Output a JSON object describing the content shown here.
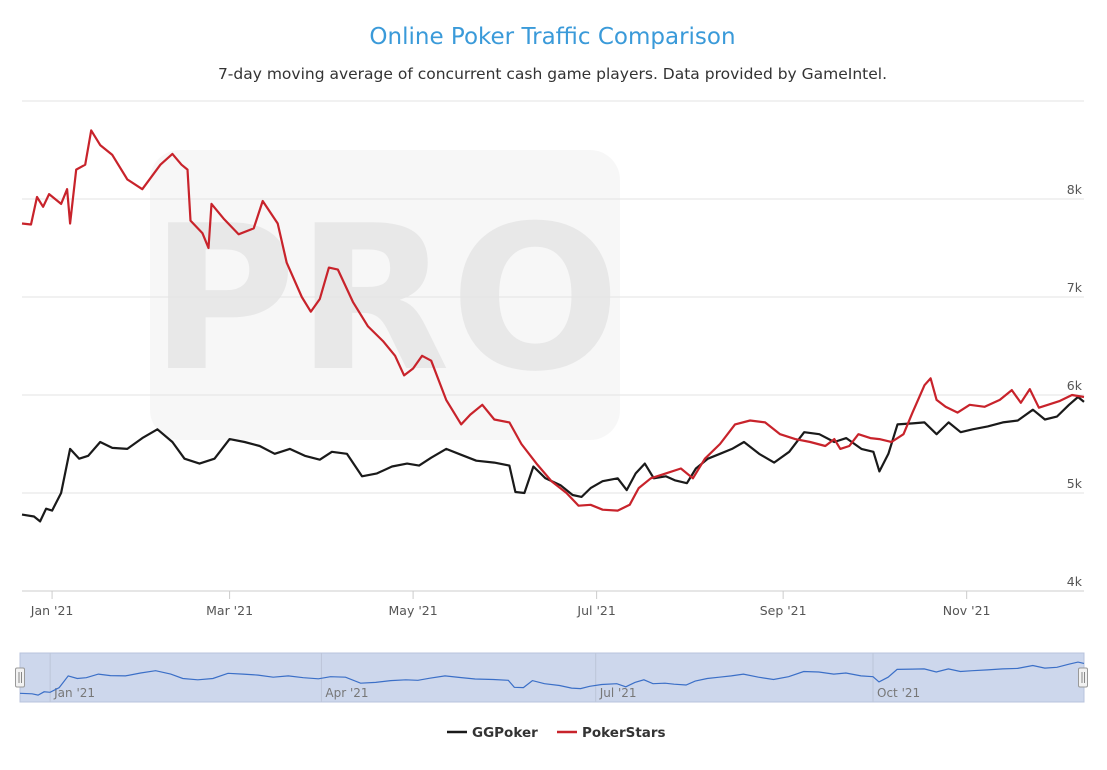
{
  "chart_data": {
    "type": "line",
    "title": "Online Poker Traffic Comparison",
    "subtitle": "7-day moving average of concurrent cash game players. Data provided by GameIntel.",
    "watermark": "PRO",
    "xlim": [
      "2020-12-22",
      "2021-12-10"
    ],
    "ylim": [
      4000,
      9000
    ],
    "y_ticks": [
      {
        "value": 4000,
        "label": "4k"
      },
      {
        "value": 5000,
        "label": "5k"
      },
      {
        "value": 6000,
        "label": "6k"
      },
      {
        "value": 7000,
        "label": "7k"
      },
      {
        "value": 8000,
        "label": "8k"
      }
    ],
    "x_ticks": [
      {
        "date": "2021-01-01",
        "label": "Jan '21"
      },
      {
        "date": "2021-03-01",
        "label": "Mar '21"
      },
      {
        "date": "2021-05-01",
        "label": "May '21"
      },
      {
        "date": "2021-07-01",
        "label": "Jul '21"
      },
      {
        "date": "2021-09-01",
        "label": "Sep '21"
      },
      {
        "date": "2021-11-01",
        "label": "Nov '21"
      }
    ],
    "grid": true,
    "legend_position": "bottom-center",
    "navigator": {
      "series": "GGPoker",
      "ticks": [
        {
          "date": "2021-01-01",
          "label": "Jan '21"
        },
        {
          "date": "2021-04-01",
          "label": "Apr '21"
        },
        {
          "date": "2021-07-01",
          "label": "Jul '21"
        },
        {
          "date": "2021-10-01",
          "label": "Oct '21"
        }
      ]
    },
    "series": [
      {
        "name": "GGPoker",
        "color": "#1a1a1a",
        "points": [
          [
            "2020-12-22",
            4780
          ],
          [
            "2020-12-26",
            4760
          ],
          [
            "2020-12-28",
            4710
          ],
          [
            "2020-12-30",
            4840
          ],
          [
            "2021-01-01",
            4820
          ],
          [
            "2021-01-04",
            5000
          ],
          [
            "2021-01-07",
            5450
          ],
          [
            "2021-01-10",
            5350
          ],
          [
            "2021-01-13",
            5380
          ],
          [
            "2021-01-17",
            5520
          ],
          [
            "2021-01-21",
            5460
          ],
          [
            "2021-01-26",
            5450
          ],
          [
            "2021-01-31",
            5560
          ],
          [
            "2021-02-05",
            5650
          ],
          [
            "2021-02-10",
            5520
          ],
          [
            "2021-02-14",
            5350
          ],
          [
            "2021-02-19",
            5300
          ],
          [
            "2021-02-24",
            5350
          ],
          [
            "2021-03-01",
            5550
          ],
          [
            "2021-03-06",
            5520
          ],
          [
            "2021-03-11",
            5480
          ],
          [
            "2021-03-16",
            5400
          ],
          [
            "2021-03-21",
            5450
          ],
          [
            "2021-03-26",
            5380
          ],
          [
            "2021-03-31",
            5340
          ],
          [
            "2021-04-04",
            5420
          ],
          [
            "2021-04-09",
            5400
          ],
          [
            "2021-04-14",
            5170
          ],
          [
            "2021-04-19",
            5200
          ],
          [
            "2021-04-24",
            5270
          ],
          [
            "2021-04-29",
            5300
          ],
          [
            "2021-05-03",
            5280
          ],
          [
            "2021-05-07",
            5360
          ],
          [
            "2021-05-12",
            5450
          ],
          [
            "2021-05-17",
            5390
          ],
          [
            "2021-05-22",
            5330
          ],
          [
            "2021-05-28",
            5310
          ],
          [
            "2021-06-02",
            5280
          ],
          [
            "2021-06-04",
            5010
          ],
          [
            "2021-06-07",
            5000
          ],
          [
            "2021-06-10",
            5270
          ],
          [
            "2021-06-14",
            5150
          ],
          [
            "2021-06-19",
            5080
          ],
          [
            "2021-06-23",
            4980
          ],
          [
            "2021-06-26",
            4960
          ],
          [
            "2021-06-29",
            5050
          ],
          [
            "2021-07-03",
            5120
          ],
          [
            "2021-07-08",
            5150
          ],
          [
            "2021-07-11",
            5030
          ],
          [
            "2021-07-14",
            5200
          ],
          [
            "2021-07-17",
            5300
          ],
          [
            "2021-07-20",
            5150
          ],
          [
            "2021-07-24",
            5170
          ],
          [
            "2021-07-27",
            5130
          ],
          [
            "2021-07-31",
            5100
          ],
          [
            "2021-08-03",
            5250
          ],
          [
            "2021-08-07",
            5350
          ],
          [
            "2021-08-11",
            5400
          ],
          [
            "2021-08-15",
            5450
          ],
          [
            "2021-08-19",
            5520
          ],
          [
            "2021-08-24",
            5400
          ],
          [
            "2021-08-29",
            5310
          ],
          [
            "2021-09-03",
            5420
          ],
          [
            "2021-09-08",
            5620
          ],
          [
            "2021-09-13",
            5600
          ],
          [
            "2021-09-18",
            5520
          ],
          [
            "2021-09-22",
            5560
          ],
          [
            "2021-09-27",
            5450
          ],
          [
            "2021-10-01",
            5420
          ],
          [
            "2021-10-03",
            5220
          ],
          [
            "2021-10-06",
            5400
          ],
          [
            "2021-10-09",
            5700
          ],
          [
            "2021-10-14",
            5710
          ],
          [
            "2021-10-18",
            5720
          ],
          [
            "2021-10-22",
            5600
          ],
          [
            "2021-10-26",
            5720
          ],
          [
            "2021-10-30",
            5620
          ],
          [
            "2021-11-03",
            5650
          ],
          [
            "2021-11-08",
            5680
          ],
          [
            "2021-11-13",
            5720
          ],
          [
            "2021-11-18",
            5740
          ],
          [
            "2021-11-23",
            5850
          ],
          [
            "2021-11-27",
            5750
          ],
          [
            "2021-12-01",
            5780
          ],
          [
            "2021-12-05",
            5900
          ],
          [
            "2021-12-08",
            5980
          ],
          [
            "2021-12-10",
            5930
          ]
        ]
      },
      {
        "name": "PokerStars",
        "color": "#c8232b",
        "points": [
          [
            "2020-12-22",
            7750
          ],
          [
            "2020-12-25",
            7740
          ],
          [
            "2020-12-27",
            8020
          ],
          [
            "2020-12-29",
            7920
          ],
          [
            "2020-12-31",
            8050
          ],
          [
            "2021-01-02",
            8000
          ],
          [
            "2021-01-04",
            7950
          ],
          [
            "2021-01-06",
            8100
          ],
          [
            "2021-01-07",
            7750
          ],
          [
            "2021-01-09",
            8300
          ],
          [
            "2021-01-12",
            8350
          ],
          [
            "2021-01-14",
            8700
          ],
          [
            "2021-01-17",
            8550
          ],
          [
            "2021-01-21",
            8450
          ],
          [
            "2021-01-26",
            8200
          ],
          [
            "2021-01-31",
            8100
          ],
          [
            "2021-02-06",
            8350
          ],
          [
            "2021-02-10",
            8460
          ],
          [
            "2021-02-13",
            8350
          ],
          [
            "2021-02-15",
            8300
          ],
          [
            "2021-02-16",
            7780
          ],
          [
            "2021-02-20",
            7650
          ],
          [
            "2021-02-22",
            7500
          ],
          [
            "2021-02-23",
            7950
          ],
          [
            "2021-02-27",
            7800
          ],
          [
            "2021-03-04",
            7640
          ],
          [
            "2021-03-09",
            7700
          ],
          [
            "2021-03-12",
            7980
          ],
          [
            "2021-03-17",
            7750
          ],
          [
            "2021-03-20",
            7350
          ],
          [
            "2021-03-25",
            7000
          ],
          [
            "2021-03-28",
            6850
          ],
          [
            "2021-03-31",
            6980
          ],
          [
            "2021-04-03",
            7300
          ],
          [
            "2021-04-06",
            7280
          ],
          [
            "2021-04-11",
            6950
          ],
          [
            "2021-04-16",
            6700
          ],
          [
            "2021-04-21",
            6550
          ],
          [
            "2021-04-25",
            6400
          ],
          [
            "2021-04-28",
            6200
          ],
          [
            "2021-05-01",
            6270
          ],
          [
            "2021-05-04",
            6400
          ],
          [
            "2021-05-07",
            6350
          ],
          [
            "2021-05-12",
            5950
          ],
          [
            "2021-05-17",
            5700
          ],
          [
            "2021-05-20",
            5800
          ],
          [
            "2021-05-24",
            5900
          ],
          [
            "2021-05-28",
            5750
          ],
          [
            "2021-06-02",
            5720
          ],
          [
            "2021-06-06",
            5500
          ],
          [
            "2021-06-11",
            5300
          ],
          [
            "2021-06-16",
            5120
          ],
          [
            "2021-06-21",
            5000
          ],
          [
            "2021-06-25",
            4870
          ],
          [
            "2021-06-29",
            4880
          ],
          [
            "2021-07-03",
            4830
          ],
          [
            "2021-07-08",
            4820
          ],
          [
            "2021-07-12",
            4880
          ],
          [
            "2021-07-15",
            5050
          ],
          [
            "2021-07-19",
            5150
          ],
          [
            "2021-07-24",
            5200
          ],
          [
            "2021-07-29",
            5250
          ],
          [
            "2021-08-02",
            5150
          ],
          [
            "2021-08-06",
            5350
          ],
          [
            "2021-08-11",
            5500
          ],
          [
            "2021-08-16",
            5700
          ],
          [
            "2021-08-21",
            5740
          ],
          [
            "2021-08-26",
            5720
          ],
          [
            "2021-08-31",
            5600
          ],
          [
            "2021-09-05",
            5550
          ],
          [
            "2021-09-10",
            5520
          ],
          [
            "2021-09-15",
            5480
          ],
          [
            "2021-09-18",
            5550
          ],
          [
            "2021-09-20",
            5450
          ],
          [
            "2021-09-23",
            5480
          ],
          [
            "2021-09-26",
            5600
          ],
          [
            "2021-09-30",
            5560
          ],
          [
            "2021-10-03",
            5550
          ],
          [
            "2021-10-07",
            5520
          ],
          [
            "2021-10-11",
            5600
          ],
          [
            "2021-10-14",
            5820
          ],
          [
            "2021-10-18",
            6100
          ],
          [
            "2021-10-20",
            6170
          ],
          [
            "2021-10-22",
            5950
          ],
          [
            "2021-10-25",
            5880
          ],
          [
            "2021-10-29",
            5820
          ],
          [
            "2021-11-02",
            5900
          ],
          [
            "2021-11-07",
            5880
          ],
          [
            "2021-11-12",
            5950
          ],
          [
            "2021-11-16",
            6050
          ],
          [
            "2021-11-19",
            5920
          ],
          [
            "2021-11-22",
            6060
          ],
          [
            "2021-11-25",
            5870
          ],
          [
            "2021-11-28",
            5900
          ],
          [
            "2021-12-02",
            5940
          ],
          [
            "2021-12-06",
            6000
          ],
          [
            "2021-12-10",
            5980
          ]
        ]
      }
    ]
  }
}
